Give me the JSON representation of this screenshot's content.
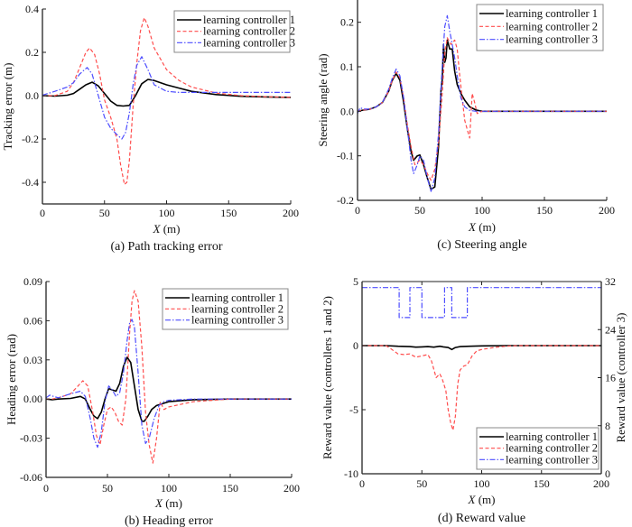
{
  "series_styles": [
    {
      "name": "learning controller 1",
      "color": "#000000",
      "dash": "solid"
    },
    {
      "name": "learning controller 2",
      "color": "#ff4d4d",
      "dash": "dashed"
    },
    {
      "name": "learning controller 3",
      "color": "#4d4dff",
      "dash": "dashdot"
    }
  ],
  "chart_data": [
    {
      "id": "a",
      "type": "line",
      "caption": "(a) Path tracking error",
      "xlabel_italic": "X",
      "xlabel_unit": " (m)",
      "ylabel": "Tracking error (m)",
      "xlim": [
        0,
        200
      ],
      "ylim": [
        -0.5,
        0.4
      ],
      "xticks": [
        0,
        50,
        100,
        150,
        200
      ],
      "xtick_labels": [
        "0",
        "50",
        "100",
        "150",
        "200"
      ],
      "yticks": [
        -0.4,
        -0.2,
        0.0,
        0.2,
        0.4
      ],
      "ytick_labels": [
        "-0.4",
        "-0.2",
        "0.0",
        "0.2",
        "0.4"
      ],
      "legend": {
        "position": "top-right",
        "entries": [
          "learning controller 1",
          "learning controller 2",
          "learning controller 3"
        ]
      },
      "series": [
        {
          "name": "learning controller 1",
          "x": [
            0,
            10,
            20,
            25,
            30,
            35,
            40,
            45,
            50,
            55,
            60,
            65,
            70,
            75,
            80,
            85,
            90,
            100,
            110,
            120,
            140,
            160,
            180,
            200
          ],
          "y": [
            0,
            -0.002,
            0.002,
            0.01,
            0.03,
            0.05,
            0.062,
            0.045,
            0.01,
            -0.025,
            -0.045,
            -0.048,
            -0.045,
            0.0,
            0.055,
            0.075,
            0.07,
            0.05,
            0.035,
            0.02,
            0.005,
            -0.003,
            -0.006,
            -0.008
          ]
        },
        {
          "name": "learning controller 2",
          "x": [
            0,
            10,
            20,
            25,
            30,
            35,
            38,
            42,
            46,
            50,
            55,
            60,
            63,
            66,
            68,
            70,
            73,
            76,
            79,
            82,
            85,
            90,
            100,
            110,
            120,
            140,
            160,
            180,
            200
          ],
          "y": [
            0,
            0.0,
            0.02,
            0.06,
            0.13,
            0.2,
            0.22,
            0.19,
            0.1,
            -0.02,
            -0.1,
            -0.2,
            -0.32,
            -0.41,
            -0.4,
            -0.3,
            -0.05,
            0.15,
            0.3,
            0.36,
            0.32,
            0.22,
            0.12,
            0.07,
            0.04,
            0.012,
            0.0,
            -0.005,
            -0.008
          ]
        },
        {
          "name": "learning controller 3",
          "x": [
            0,
            10,
            20,
            25,
            30,
            36,
            40,
            45,
            50,
            55,
            60,
            64,
            67,
            70,
            73,
            76,
            80,
            85,
            90,
            100,
            110,
            130,
            150,
            200
          ],
          "y": [
            0.002,
            0.02,
            0.04,
            0.06,
            0.1,
            0.13,
            0.1,
            0.0,
            -0.1,
            -0.15,
            -0.18,
            -0.2,
            -0.17,
            -0.08,
            0.05,
            0.14,
            0.18,
            0.12,
            0.05,
            0.02,
            0.015,
            0.015,
            0.015,
            0.015
          ]
        }
      ]
    },
    {
      "id": "c",
      "type": "line",
      "caption": "(c) Steering angle",
      "xlabel_italic": "X",
      "xlabel_unit": " (m)",
      "ylabel": "Steering angle (rad)",
      "xlim": [
        0,
        200
      ],
      "ylim": [
        -0.2,
        0.25
      ],
      "xticks": [
        0,
        50,
        100,
        150,
        200
      ],
      "xtick_labels": [
        "0",
        "50",
        "100",
        "150",
        "200"
      ],
      "yticks": [
        -0.2,
        -0.1,
        0.0,
        0.1,
        0.2
      ],
      "ytick_labels": [
        "-0.2",
        "-0.1",
        "0.0",
        "0.1",
        "0.2"
      ],
      "legend": {
        "position": "top-right",
        "entries": [
          "learning controller 1",
          "learning controller 2",
          "learning controller 3"
        ]
      },
      "series": [
        {
          "name": "learning controller 1",
          "x": [
            0,
            5,
            10,
            15,
            20,
            25,
            28,
            31,
            34,
            37,
            40,
            43,
            45,
            48,
            50,
            53,
            56,
            59,
            62,
            65,
            67,
            68,
            69,
            70,
            71,
            72,
            74,
            76,
            78,
            80,
            83,
            86,
            90,
            95,
            100,
            110,
            150,
            200
          ],
          "y": [
            0,
            0.003,
            0.005,
            0.01,
            0.02,
            0.045,
            0.07,
            0.085,
            0.07,
            0.02,
            -0.04,
            -0.09,
            -0.11,
            -0.1,
            -0.098,
            -0.12,
            -0.15,
            -0.175,
            -0.17,
            -0.08,
            0.05,
            0.07,
            0.15,
            0.11,
            0.12,
            0.16,
            0.14,
            0.14,
            0.09,
            0.06,
            0.04,
            0.025,
            0.01,
            0.003,
            0.0,
            0.0,
            0.0,
            0.0
          ]
        },
        {
          "name": "learning controller 2",
          "x": [
            0,
            5,
            10,
            15,
            20,
            25,
            28,
            31,
            34,
            37,
            40,
            43,
            46,
            50,
            53,
            56,
            59,
            62,
            65,
            68,
            70,
            72,
            75,
            78,
            80,
            82,
            84,
            86,
            88,
            90,
            92,
            94,
            96,
            100,
            110,
            150,
            200
          ],
          "y": [
            0,
            0.003,
            0.005,
            0.01,
            0.02,
            0.045,
            0.07,
            0.088,
            0.075,
            0.03,
            -0.03,
            -0.08,
            -0.12,
            -0.11,
            -0.12,
            -0.14,
            -0.155,
            -0.13,
            -0.07,
            0.04,
            0.13,
            0.165,
            0.15,
            0.16,
            0.14,
            0.08,
            0.03,
            -0.02,
            -0.04,
            -0.06,
            0.04,
            0.02,
            -0.005,
            0.0,
            0.0,
            0.0,
            0.0
          ]
        },
        {
          "name": "learning controller 3",
          "x": [
            0,
            2,
            5,
            10,
            15,
            20,
            25,
            28,
            31,
            34,
            37,
            40,
            43,
            45,
            48,
            50,
            53,
            56,
            59,
            62,
            65,
            68,
            70,
            72,
            74,
            76,
            78,
            80,
            83,
            86,
            90,
            95,
            100,
            150,
            200
          ],
          "y": [
            -0.005,
            0.008,
            0.005,
            0.005,
            0.01,
            0.02,
            0.05,
            0.075,
            0.095,
            0.08,
            0.03,
            -0.04,
            -0.11,
            -0.14,
            -0.12,
            -0.1,
            -0.11,
            -0.15,
            -0.18,
            -0.15,
            -0.05,
            0.1,
            0.19,
            0.215,
            0.18,
            0.15,
            0.12,
            0.08,
            0.03,
            0.01,
            0.002,
            0.0,
            0.0,
            0.0,
            0.0
          ]
        }
      ]
    },
    {
      "id": "b",
      "type": "line",
      "caption": "(b) Heading error",
      "xlabel_italic": "X",
      "xlabel_unit": " (m)",
      "ylabel": "Heading error (rad)",
      "xlim": [
        0,
        200
      ],
      "ylim": [
        -0.06,
        0.09
      ],
      "xticks": [
        0,
        50,
        100,
        150,
        200
      ],
      "xtick_labels": [
        "0",
        "50",
        "100",
        "150",
        "200"
      ],
      "yticks": [
        -0.06,
        -0.03,
        0.0,
        0.03,
        0.06,
        0.09
      ],
      "ytick_labels": [
        "-0.06",
        "-0.03",
        "0.00",
        "0.03",
        "0.06",
        "0.09"
      ],
      "legend": {
        "position": "top-right",
        "entries": [
          "learning controller 1",
          "learning controller 2",
          "learning controller 3"
        ]
      },
      "series": [
        {
          "name": "learning controller 1",
          "x": [
            0,
            5,
            10,
            20,
            28,
            32,
            36,
            39,
            42,
            45,
            48,
            51,
            54,
            57,
            60,
            63,
            66,
            69,
            72,
            75,
            78,
            80,
            83,
            86,
            90,
            100,
            120,
            150,
            200
          ],
          "y": [
            0,
            -0.0005,
            0,
            0.0005,
            0.002,
            0.0,
            -0.008,
            -0.013,
            -0.015,
            -0.01,
            0.0,
            0.008,
            0.007,
            0.006,
            0.012,
            0.025,
            0.032,
            0.028,
            0.01,
            -0.008,
            -0.017,
            -0.017,
            -0.013,
            -0.008,
            -0.005,
            -0.002,
            -0.0005,
            0.0,
            0.0
          ]
        },
        {
          "name": "learning controller 2",
          "x": [
            0,
            5,
            10,
            20,
            25,
            30,
            34,
            38,
            41,
            44,
            47,
            50,
            53,
            56,
            59,
            62,
            65,
            68,
            70,
            72,
            75,
            78,
            81,
            84,
            87,
            90,
            93,
            96,
            100,
            120,
            150,
            200
          ],
          "y": [
            0,
            0.0,
            0.001,
            0.004,
            0.009,
            0.014,
            0.01,
            -0.01,
            -0.028,
            -0.035,
            -0.02,
            -0.008,
            -0.006,
            -0.01,
            -0.017,
            -0.02,
            0.0,
            0.05,
            0.075,
            0.083,
            0.075,
            0.04,
            -0.01,
            -0.035,
            -0.049,
            -0.03,
            -0.002,
            -0.008,
            -0.006,
            -0.002,
            0.0,
            0.0
          ]
        },
        {
          "name": "learning controller 3",
          "x": [
            0,
            3,
            6,
            10,
            20,
            28,
            32,
            36,
            39,
            42,
            45,
            48,
            51,
            54,
            57,
            60,
            63,
            66,
            68,
            70,
            72,
            75,
            78,
            81,
            84,
            88,
            92,
            96,
            100,
            120,
            150,
            200
          ],
          "y": [
            0.001,
            0.003,
            0.002,
            0.001,
            0.004,
            0.006,
            0.002,
            -0.015,
            -0.03,
            -0.037,
            -0.025,
            -0.002,
            0.01,
            0.007,
            0.002,
            0.005,
            0.02,
            0.045,
            0.058,
            0.061,
            0.055,
            0.02,
            -0.02,
            -0.034,
            -0.03,
            -0.015,
            -0.005,
            -0.002,
            -0.001,
            0.0,
            0.0,
            0.0
          ]
        }
      ]
    },
    {
      "id": "d",
      "type": "line",
      "caption": "(d) Reward value",
      "xlabel_italic": "X",
      "xlabel_unit": " (m)",
      "ylabel": "Reward value (controllers 1 and 2)",
      "ylabel_right": "Reward value (controller 3)",
      "xlim": [
        0,
        200
      ],
      "ylim": [
        -10,
        5
      ],
      "ylim_right": [
        0,
        32
      ],
      "xticks": [
        0,
        50,
        100,
        150,
        200
      ],
      "xtick_labels": [
        "0",
        "50",
        "100",
        "150",
        "200"
      ],
      "yticks": [
        -10,
        -5,
        0,
        5
      ],
      "ytick_labels": [
        "-10",
        "-5",
        "0",
        "5"
      ],
      "yticks_right": [
        0,
        8,
        16,
        24,
        32
      ],
      "ytick_labels_right": [
        "0",
        "8",
        "16",
        "24",
        "32"
      ],
      "legend": {
        "position": "bottom-right",
        "entries": [
          "learning controller 1",
          "learning controller 2",
          "learning controller 3"
        ]
      },
      "series": [
        {
          "name": "learning controller 1",
          "axis": "left",
          "x": [
            0,
            20,
            30,
            40,
            45,
            50,
            55,
            60,
            65,
            68,
            72,
            75,
            78,
            82,
            90,
            100,
            120,
            200
          ],
          "y": [
            0,
            0,
            -0.05,
            -0.08,
            -0.12,
            -0.1,
            -0.08,
            -0.12,
            -0.05,
            -0.1,
            -0.15,
            -0.3,
            -0.15,
            -0.08,
            -0.05,
            -0.02,
            0,
            0
          ]
        },
        {
          "name": "learning controller 2",
          "axis": "left",
          "x": [
            0,
            20,
            25,
            30,
            35,
            40,
            45,
            50,
            55,
            58,
            62,
            65,
            67,
            70,
            72,
            74,
            76,
            78,
            80,
            82,
            85,
            88,
            92,
            96,
            100,
            110,
            120,
            130,
            200
          ],
          "y": [
            0,
            0,
            -0.3,
            -0.65,
            -0.7,
            -0.65,
            -0.9,
            -0.8,
            -0.7,
            -1.2,
            -2.5,
            -2.2,
            -2.6,
            -3.5,
            -5,
            -6,
            -6.6,
            -5.5,
            -3,
            -1.9,
            -1.6,
            -1.5,
            -0.8,
            -0.4,
            -0.3,
            -0.15,
            -0.05,
            0,
            0
          ]
        },
        {
          "name": "learning controller 3",
          "axis": "right",
          "x": [
            0,
            31,
            31,
            40,
            40,
            50,
            50,
            69,
            69,
            75,
            75,
            88,
            88,
            200
          ],
          "y": [
            31,
            31,
            26,
            26,
            31,
            31,
            26,
            26,
            31,
            31,
            26,
            26,
            31,
            31
          ]
        }
      ]
    }
  ]
}
